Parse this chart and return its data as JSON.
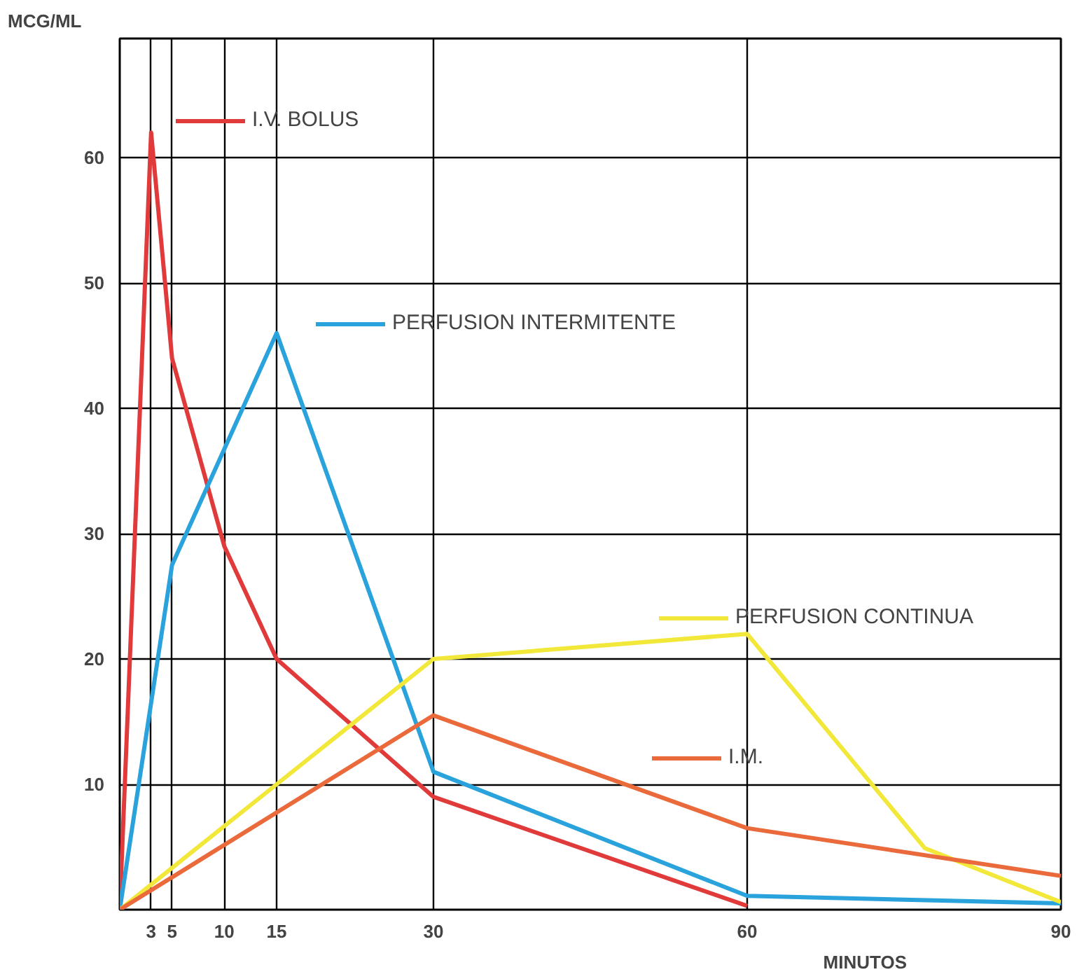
{
  "chart_data": {
    "type": "line",
    "xlabel": "MINUTOS",
    "ylabel": "MCG/ML",
    "xlim": [
      0,
      90
    ],
    "ylim": [
      0,
      69.5
    ],
    "xticks": [
      3,
      5,
      10,
      15,
      30,
      60,
      90
    ],
    "yticks": [
      10,
      20,
      30,
      40,
      50,
      60
    ],
    "grid": true,
    "legend": "center",
    "marker": "none",
    "line_style": "solid",
    "series": [
      {
        "name": "I.V. BOLUS",
        "color": "#e03a3a",
        "x": [
          0,
          3,
          5,
          10,
          15,
          30,
          60
        ],
        "values": [
          0,
          62,
          44,
          29,
          20,
          9,
          0.3
        ]
      },
      {
        "name": "PERFUSION INTERMITENTE",
        "color": "#2aa3dc",
        "x": [
          0,
          5,
          15,
          30,
          60,
          90
        ],
        "values": [
          0,
          27.5,
          46,
          11,
          1.1,
          0.5
        ]
      },
      {
        "name": "PERFUSION CONTINUA",
        "color": "#f2e83a",
        "x": [
          0,
          15,
          30,
          60,
          77,
          90
        ],
        "values": [
          0,
          10,
          20,
          22,
          4.9,
          0.6
        ]
      },
      {
        "name": "I.M.",
        "color": "#ea6a3c",
        "x": [
          0,
          30,
          60,
          90
        ],
        "values": [
          0,
          15.5,
          6.5,
          2.7
        ]
      }
    ]
  }
}
